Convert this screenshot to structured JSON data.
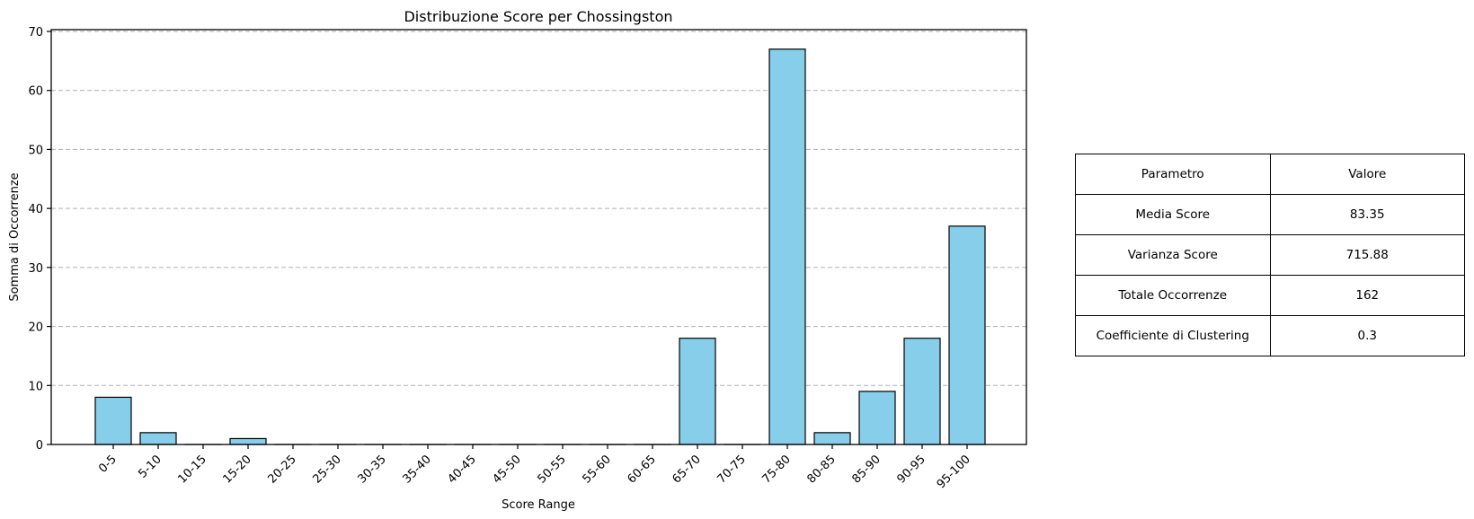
{
  "chart_data": {
    "type": "bar",
    "title": "Distribuzione Score per Chossingston",
    "xlabel": "Score Range",
    "ylabel": "Somma di Occorrenze",
    "categories": [
      "0-5",
      "5-10",
      "10-15",
      "15-20",
      "20-25",
      "25-30",
      "30-35",
      "35-40",
      "40-45",
      "45-50",
      "50-55",
      "55-60",
      "60-65",
      "65-70",
      "70-75",
      "75-80",
      "80-85",
      "85-90",
      "90-95",
      "95-100"
    ],
    "values": [
      8,
      2,
      0,
      1,
      0,
      0,
      0,
      0,
      0,
      0,
      0,
      0,
      0,
      18,
      0,
      67,
      2,
      9,
      18,
      37
    ],
    "ylim": [
      0,
      70
    ],
    "yticks": [
      0,
      10,
      20,
      30,
      40,
      50,
      60,
      70
    ],
    "grid": "y-dashed",
    "bar_color": "#87CEEB",
    "bar_edge_color": "#000000"
  },
  "table": {
    "rows": [
      [
        "Parametro",
        "Valore"
      ],
      [
        "Media Score",
        "83.35"
      ],
      [
        "Varianza Score",
        "715.88"
      ],
      [
        "Totale Occorrenze",
        "162"
      ],
      [
        "Coefficiente di Clustering",
        "0.3"
      ]
    ]
  }
}
